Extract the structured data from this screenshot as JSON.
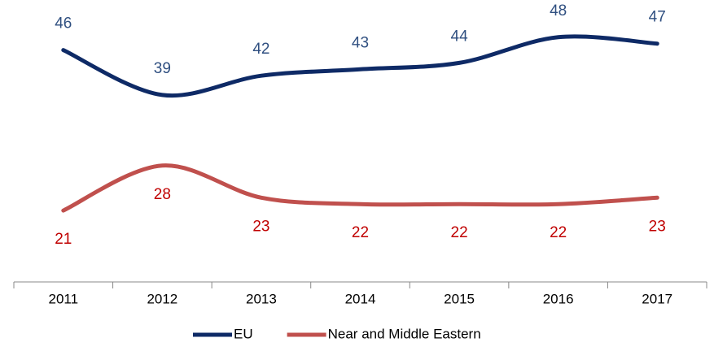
{
  "chart_data": {
    "type": "line",
    "categories": [
      "2011",
      "2012",
      "2013",
      "2014",
      "2015",
      "2016",
      "2017"
    ],
    "series": [
      {
        "name": "EU",
        "color": "#0e2a66",
        "values": [
          46,
          39,
          42,
          43,
          44,
          48,
          47
        ]
      },
      {
        "name": "Near and Middle Eastern",
        "color": "#c0504d",
        "values": [
          21,
          28,
          23,
          22,
          22,
          22,
          23
        ]
      }
    ],
    "ylim": [
      10,
      50
    ]
  }
}
